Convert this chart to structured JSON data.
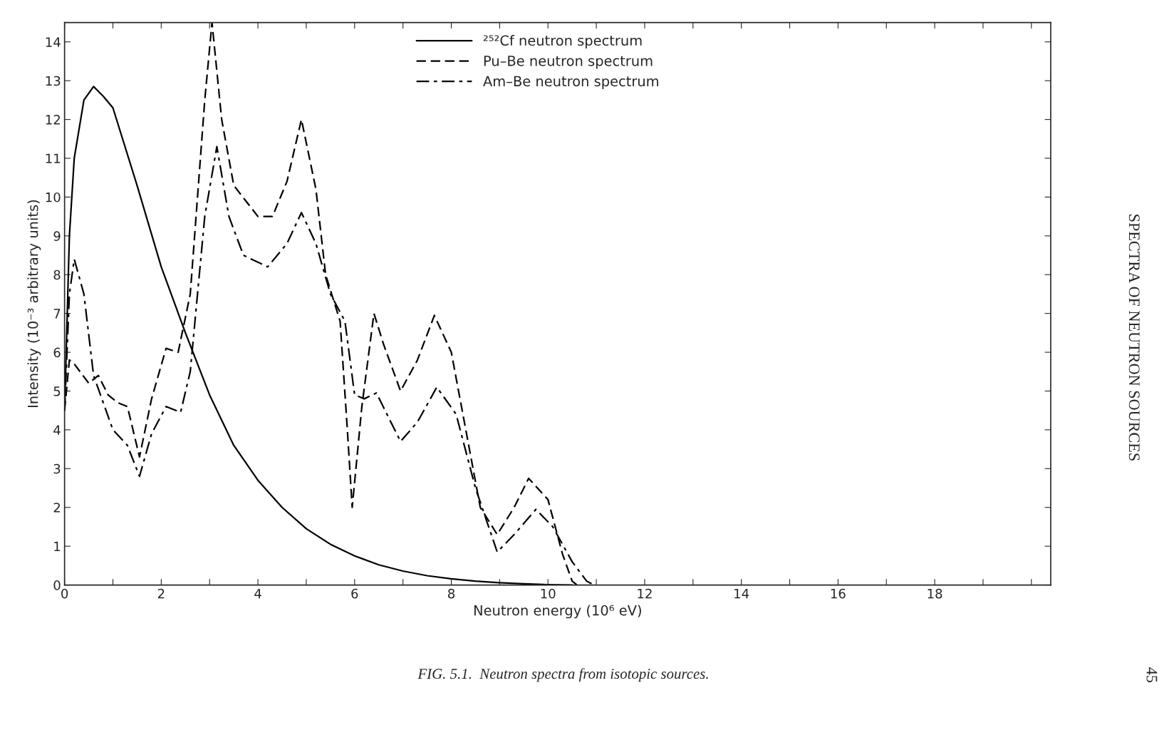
{
  "chart_data": {
    "type": "line",
    "xlabel": "Neutron energy (10⁶ eV)",
    "ylabel": "Intensity (10⁻³ arbitrary units)",
    "xlim": [
      0,
      20.4
    ],
    "ylim": [
      0,
      14.5
    ],
    "xticks": [
      0,
      {
        "value": 1,
        "label": null
      },
      2,
      {
        "value": 3,
        "label": null
      },
      4,
      {
        "value": 5,
        "label": null
      },
      6,
      {
        "value": 7,
        "label": null
      },
      8,
      {
        "value": 9,
        "label": null
      },
      10,
      {
        "value": 11,
        "label": null
      },
      12,
      {
        "value": 13,
        "label": null
      },
      14,
      {
        "value": 15,
        "label": null
      },
      16,
      {
        "value": 17,
        "label": null
      },
      18,
      {
        "value": 19,
        "label": null
      },
      {
        "value": 20,
        "label": null
      }
    ],
    "yticks": [
      0,
      1,
      2,
      3,
      4,
      5,
      6,
      7,
      8,
      9,
      10,
      11,
      12,
      13,
      14
    ],
    "grid": false,
    "legend": "top",
    "marker": "none",
    "series": [
      {
        "name": "²⁵²Cf neutron spectrum",
        "color": "#000000",
        "line_style": "solid",
        "x": [
          0,
          0.1,
          0.2,
          0.4,
          0.6,
          0.8,
          1.0,
          1.5,
          2.0,
          2.5,
          3.0,
          3.5,
          4.0,
          4.5,
          5.0,
          5.5,
          6.0,
          6.5,
          7.0,
          7.5,
          8.0,
          8.5,
          9.0,
          9.5,
          10.0,
          10.5
        ],
        "values": [
          4.5,
          9,
          11,
          12.5,
          12.85,
          12.6,
          12.3,
          10.3,
          8.2,
          6.5,
          4.9,
          3.6,
          2.7,
          2.0,
          1.45,
          1.05,
          0.75,
          0.52,
          0.36,
          0.24,
          0.16,
          0.1,
          0.06,
          0.03,
          0.01,
          0
        ]
      },
      {
        "name": "Pu–Be neutron spectrum",
        "color": "#000000",
        "line_style": "dashed",
        "x": [
          0,
          0.1,
          0.2,
          0.5,
          0.7,
          0.9,
          1.1,
          1.3,
          1.55,
          1.8,
          2.1,
          2.35,
          2.6,
          2.9,
          3.05,
          3.25,
          3.5,
          4.0,
          4.3,
          4.6,
          4.9,
          5.2,
          5.4,
          5.7,
          5.85,
          5.95,
          6.15,
          6.4,
          6.6,
          6.95,
          7.3,
          7.65,
          8.0,
          8.3,
          8.6,
          8.95,
          9.3,
          9.6,
          10.0,
          10.3,
          10.5,
          10.6
        ],
        "values": [
          4.5,
          5.8,
          5.7,
          5.2,
          5.4,
          4.9,
          4.7,
          4.6,
          3.3,
          4.8,
          6.1,
          6.0,
          7.5,
          12.5,
          14.5,
          12,
          10.3,
          9.5,
          9.5,
          10.4,
          12.0,
          10.2,
          8.0,
          6.8,
          4.0,
          2.0,
          4.6,
          7.0,
          6.2,
          5.0,
          5.8,
          6.95,
          6.0,
          4.0,
          2.0,
          1.3,
          2.0,
          2.75,
          2.2,
          0.8,
          0.1,
          0
        ]
      },
      {
        "name": "Am–Be neutron spectrum",
        "color": "#000000",
        "line_style": "dashdot",
        "x": [
          0,
          0.1,
          0.2,
          0.4,
          0.6,
          0.8,
          1.0,
          1.3,
          1.55,
          1.8,
          2.1,
          2.4,
          2.6,
          2.9,
          3.15,
          3.4,
          3.7,
          4.2,
          4.6,
          4.9,
          5.2,
          5.5,
          5.8,
          6.0,
          6.2,
          6.45,
          6.95,
          7.3,
          7.7,
          8.1,
          8.5,
          8.95,
          9.3,
          9.75,
          10.1,
          10.5,
          10.8,
          10.95
        ],
        "values": [
          4.5,
          7.5,
          8.4,
          7.5,
          5.4,
          4.7,
          4.0,
          3.6,
          2.8,
          3.9,
          4.6,
          4.45,
          5.5,
          9.5,
          11.3,
          9.5,
          8.5,
          8.2,
          8.8,
          9.6,
          8.8,
          7.5,
          6.8,
          4.9,
          4.8,
          4.95,
          3.7,
          4.2,
          5.1,
          4.4,
          2.5,
          0.85,
          1.3,
          1.95,
          1.5,
          0.6,
          0.1,
          0
        ]
      }
    ],
    "annotations": [
      "FIG. 5.1.  Neutron spectra from isotopic sources.",
      "SPECTRA OF NEUTRON SOURCES",
      "45"
    ]
  }
}
